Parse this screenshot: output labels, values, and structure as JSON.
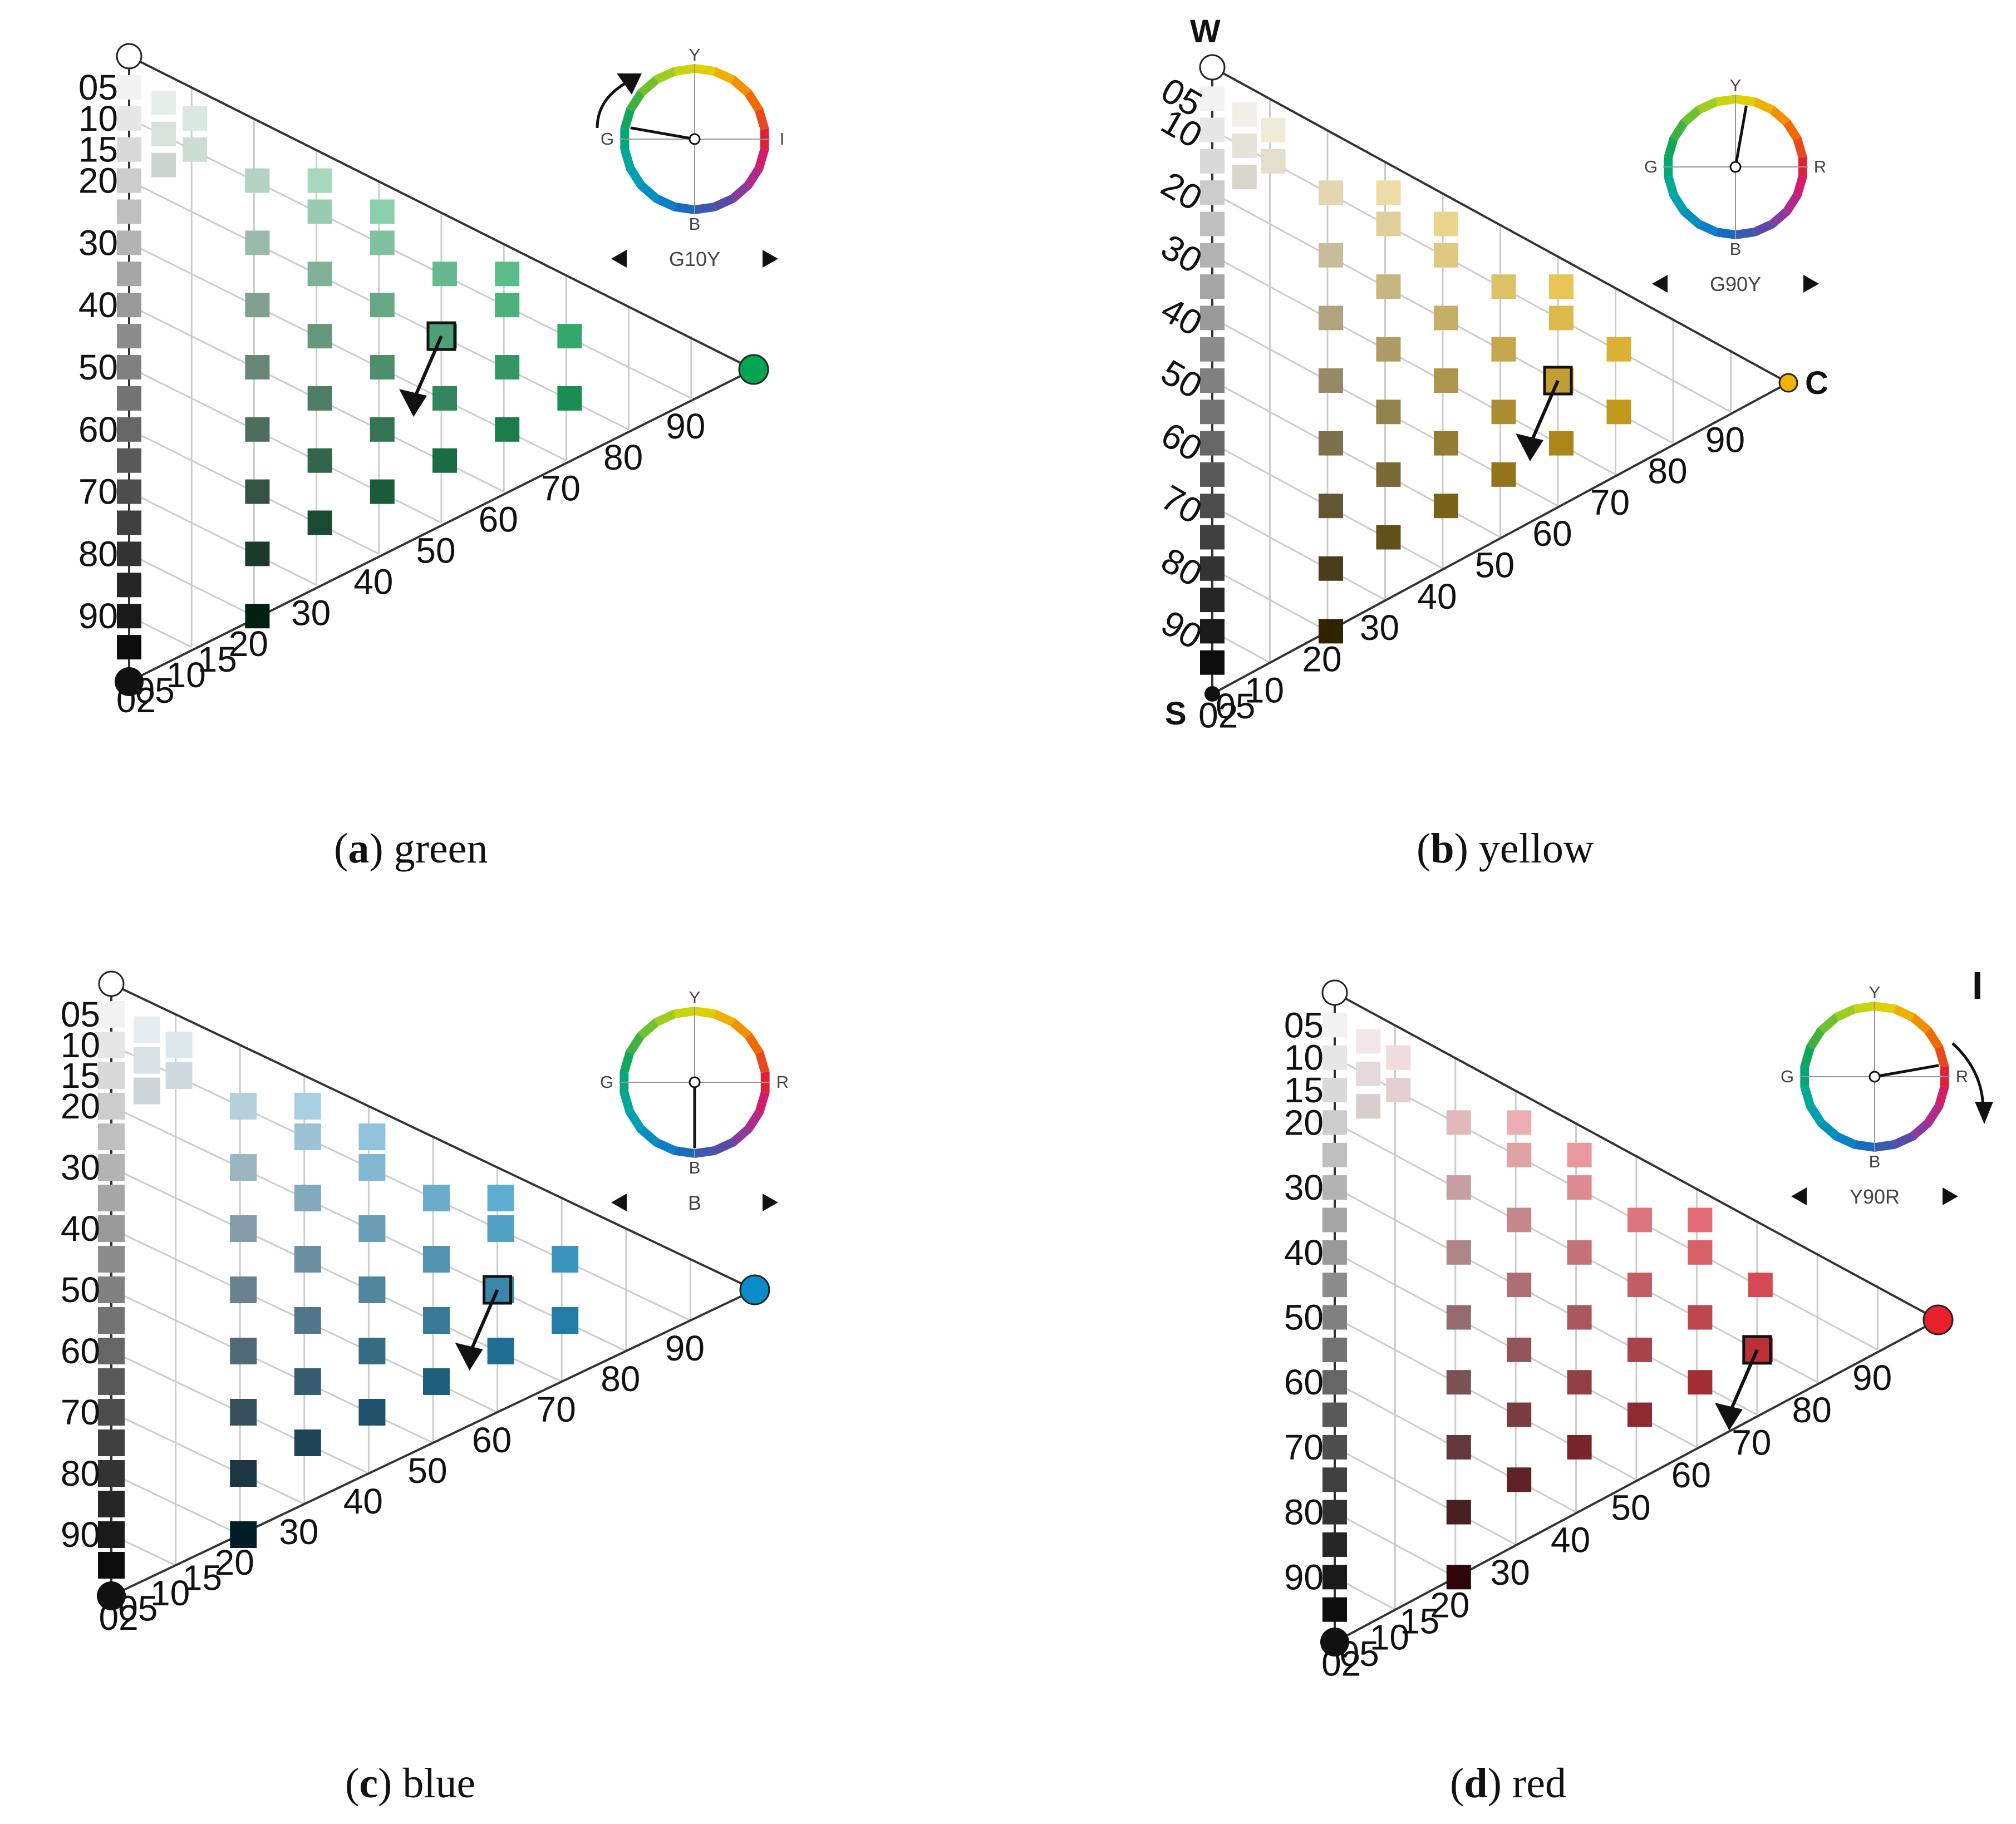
{
  "figure": {
    "panels": [
      {
        "id": "a",
        "caption": {
          "letter": "a",
          "text": "green"
        },
        "hue_label": "G10Y",
        "show_arrows": true,
        "hand_angle_deg": 170,
        "arrow": "ccw",
        "hue_color": "#00a651",
        "corner_labels": [],
        "black_ticks": [
          "05",
          "10",
          "15",
          "20",
          "30",
          "40",
          "50",
          "60",
          "70",
          "80",
          "90"
        ],
        "chroma_ticks": [
          "02",
          "05",
          "10",
          "15",
          "20",
          "30",
          "40",
          "50",
          "60",
          "70",
          "80",
          "90"
        ],
        "wheel_letters": {
          "top": "Y",
          "left": "G",
          "right": "I",
          "bottom": "B"
        }
      },
      {
        "id": "b",
        "caption": {
          "letter": "b",
          "text": "yellow"
        },
        "hue_label": "G90Y",
        "show_arrows": true,
        "hand_angle_deg": 80,
        "arrow": "none",
        "hue_color": "#f0b400",
        "corner_labels": [
          "W",
          "C",
          "S"
        ],
        "black_ticks": [
          "05",
          "10",
          "20",
          "30",
          "40",
          "50",
          "60",
          "70",
          "80",
          "90"
        ],
        "chroma_ticks": [
          "02",
          "05",
          "10",
          "20",
          "30",
          "40",
          "50",
          "60",
          "70",
          "80",
          "90"
        ],
        "wheel_letters": {
          "top": "Y",
          "left": "G",
          "right": "R",
          "bottom": "B"
        }
      },
      {
        "id": "c",
        "caption": {
          "letter": "c",
          "text": "blue"
        },
        "hue_label": "B",
        "show_arrows": true,
        "hand_angle_deg": 270,
        "arrow": "none",
        "hue_color": "#0a8cc8",
        "corner_labels": [],
        "black_ticks": [
          "05",
          "10",
          "15",
          "20",
          "30",
          "40",
          "50",
          "60",
          "70",
          "80",
          "90"
        ],
        "chroma_ticks": [
          "02",
          "05",
          "10",
          "15",
          "20",
          "30",
          "40",
          "50",
          "60",
          "70",
          "80",
          "90"
        ],
        "wheel_letters": {
          "top": "Y",
          "left": "G",
          "right": "R",
          "bottom": "B"
        }
      },
      {
        "id": "d",
        "caption": {
          "letter": "d",
          "text": "red"
        },
        "hue_label": "Y90R",
        "show_arrows": true,
        "hand_angle_deg": 10,
        "arrow": "cw",
        "extra_label": "I",
        "hue_color": "#e8202c",
        "corner_labels": [],
        "black_ticks": [
          "05",
          "10",
          "15",
          "20",
          "30",
          "40",
          "50",
          "60",
          "70",
          "80",
          "90"
        ],
        "chroma_ticks": [
          "02",
          "05",
          "10",
          "15",
          "20",
          "30",
          "40",
          "50",
          "60",
          "70",
          "80",
          "90"
        ],
        "wheel_letters": {
          "top": "Y",
          "left": "G",
          "right": "R",
          "bottom": "B"
        }
      }
    ]
  }
}
